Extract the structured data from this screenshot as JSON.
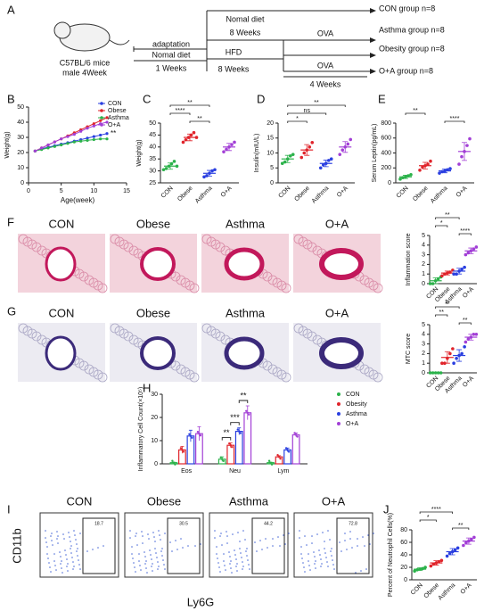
{
  "panel_a": {
    "panel": "A",
    "mouse": [
      "C57BL/6 mice",
      "male 4Week"
    ],
    "adaptation": "adaptation",
    "adaptation_diet": "Nomal diet",
    "adaptation_time": "1 Weeks",
    "normal_diet": "Nomal diet",
    "normal_time": "8 Weeks",
    "hfd": "HFD",
    "hfd_time": "8 Weeks",
    "ova_top": "OVA",
    "ova_bottom": "OVA",
    "ova_time": "4 Weeks",
    "groups": [
      "CON group n=8",
      "Asthma group n=8",
      "Obesity group n=8",
      "O+A group n=8"
    ]
  },
  "histology": [
    {
      "panel": "F",
      "labels": [
        "CON",
        "Obese",
        "Asthma",
        "O+A"
      ]
    },
    {
      "panel": "G",
      "labels": [
        "CON",
        "Obese",
        "Asthma",
        "O+A"
      ]
    }
  ],
  "flow": {
    "panel": "I",
    "labels": [
      "CON",
      "Obese",
      "Asthma",
      "O+A"
    ],
    "gates": [
      18.7,
      30.5,
      44.2,
      72.8
    ],
    "y_label": "CD11b",
    "x_label": "Ly6G"
  },
  "chart_data": [
    {
      "type": "line",
      "panel": "B",
      "x_label": "Age(week)",
      "y_label": "Weight(g)",
      "x": [
        1,
        2,
        3,
        4,
        5,
        6,
        7,
        8,
        9,
        10,
        11,
        12
      ],
      "series": [
        {
          "name": "CON",
          "color": "#2a3fe0",
          "values": [
            21,
            22.5,
            23.5,
            24.5,
            25.5,
            26.5,
            27.5,
            28.5,
            29.5,
            30.5,
            31.5,
            32.5
          ]
        },
        {
          "name": "Obese",
          "color": "#e0242b",
          "values": [
            21,
            23,
            25,
            27,
            29,
            31,
            33,
            35,
            37,
            39,
            41,
            43
          ]
        },
        {
          "name": "Asthma",
          "color": "#2bb24a",
          "values": [
            21,
            22,
            23,
            24,
            25,
            26,
            27,
            27.5,
            28,
            28.5,
            29,
            29
          ]
        },
        {
          "name": "O+A",
          "color": "#a23fd6",
          "values": [
            21,
            23,
            25,
            27,
            29,
            30.5,
            32,
            34,
            36,
            37.5,
            39,
            40
          ]
        }
      ],
      "xlim": [
        0,
        15
      ],
      "xticks": [
        0,
        5,
        10,
        15
      ],
      "ylim": [
        0,
        50
      ],
      "yticks": [
        0,
        10,
        20,
        30,
        40,
        50
      ],
      "annotation": "**"
    },
    {
      "type": "dot",
      "panel": "C",
      "y_label": "Weight(g)",
      "categories": [
        "CON",
        "Obese",
        "Asthma",
        "O+A"
      ],
      "colors": [
        "#2bb24a",
        "#e0242b",
        "#2a3fe0",
        "#a23fd6"
      ],
      "points": [
        [
          30.5,
          31,
          32,
          33,
          34,
          32
        ],
        [
          42,
          43,
          44,
          45,
          46,
          44
        ],
        [
          27.5,
          28,
          29,
          30,
          30.5
        ],
        [
          38,
          39,
          40,
          41,
          42
        ]
      ],
      "means": [
        32,
        44,
        29,
        40
      ],
      "sd": [
        1.3,
        1.4,
        1.2,
        1.5
      ],
      "ylim": [
        25,
        50
      ],
      "yticks": [
        25,
        30,
        35,
        40,
        45,
        50
      ],
      "brackets": [
        {
          "between": [
            "CON",
            "Asthma"
          ],
          "label": "**"
        },
        {
          "between": [
            "CON",
            "Obese"
          ],
          "label": "****"
        },
        {
          "between": [
            "Obese",
            "Asthma"
          ],
          "label": "**"
        }
      ]
    },
    {
      "type": "dot",
      "panel": "D",
      "y_label": "Insulin(mIU/L)",
      "categories": [
        "CON",
        "Obese",
        "Asthma",
        "O+A"
      ],
      "colors": [
        "#2bb24a",
        "#e0242b",
        "#2a3fe0",
        "#a23fd6"
      ],
      "points": [
        [
          6.5,
          7,
          8,
          9,
          9.5
        ],
        [
          8.5,
          10,
          11,
          12,
          13.5
        ],
        [
          5,
          6,
          6.5,
          7.5,
          8
        ],
        [
          9.5,
          11,
          12,
          13,
          14.5
        ]
      ],
      "means": [
        8,
        11,
        6.5,
        12
      ],
      "sd": [
        1.2,
        1.8,
        1.1,
        1.8
      ],
      "ylim": [
        0,
        20
      ],
      "yticks": [
        0,
        5,
        10,
        15,
        20
      ],
      "brackets": [
        {
          "between": [
            "CON",
            "O+A"
          ],
          "label": "**"
        },
        {
          "between": [
            "CON",
            "Asthma"
          ],
          "label": "ns"
        },
        {
          "between": [
            "CON",
            "Obese"
          ],
          "label": "*"
        }
      ]
    },
    {
      "type": "dot",
      "panel": "E",
      "y_label": "Serum Leptin(pg/mL)",
      "categories": [
        "CON",
        "Obese",
        "Asthma",
        "O+A"
      ],
      "colors": [
        "#2bb24a",
        "#e0242b",
        "#2a3fe0",
        "#a23fd6"
      ],
      "points": [
        [
          50,
          70,
          80,
          95,
          110
        ],
        [
          170,
          210,
          230,
          250,
          290
        ],
        [
          130,
          150,
          160,
          175,
          190
        ],
        [
          250,
          350,
          420,
          500,
          590
        ]
      ],
      "means": [
        80,
        230,
        160,
        420
      ],
      "sd": [
        22,
        45,
        25,
        120
      ],
      "ylim": [
        0,
        800
      ],
      "yticks": [
        0,
        200,
        400,
        600,
        800
      ],
      "brackets": [
        {
          "between": [
            "CON",
            "Obese"
          ],
          "label": "**"
        },
        {
          "between": [
            "Asthma",
            "O+A"
          ],
          "label": "****"
        }
      ]
    },
    {
      "type": "dot",
      "panel": "",
      "y_label": "Inflammation score",
      "categories": [
        "CON",
        "Obese",
        "Asthma",
        "O+A"
      ],
      "colors": [
        "#2bb24a",
        "#e0242b",
        "#2a3fe0",
        "#a23fd6"
      ],
      "points": [
        [
          0,
          0,
          0.3,
          0.5,
          0.7
        ],
        [
          0.8,
          1,
          1.1,
          1.2,
          1.4
        ],
        [
          1,
          1,
          1.3,
          1.5,
          1.7
        ],
        [
          3,
          3.2,
          3.4,
          3.6,
          3.8
        ]
      ],
      "means": [
        0.3,
        1.1,
        1.3,
        3.4
      ],
      "sd": [
        0.3,
        0.2,
        0.3,
        0.3
      ],
      "ylim": [
        0,
        5
      ],
      "yticks": [
        0,
        1,
        2,
        3,
        4,
        5
      ],
      "brackets": [
        {
          "between": [
            "CON",
            "Asthma"
          ],
          "label": "**"
        },
        {
          "between": [
            "CON",
            "Obese"
          ],
          "label": "*"
        },
        {
          "between": [
            "Asthma",
            "O+A"
          ],
          "label": "****"
        }
      ]
    },
    {
      "type": "dot",
      "panel": "",
      "y_label": "MTC score",
      "categories": [
        "CON",
        "Obese",
        "Asthma",
        "O+A"
      ],
      "colors": [
        "#2bb24a",
        "#e0242b",
        "#2a3fe0",
        "#a23fd6"
      ],
      "points": [
        [
          0,
          0,
          0,
          0,
          0
        ],
        [
          1,
          1,
          1.5,
          2,
          2.5
        ],
        [
          1,
          1.5,
          1.8,
          2,
          2.7
        ],
        [
          3.2,
          3.5,
          3.7,
          4,
          4
        ]
      ],
      "means": [
        0,
        1.6,
        1.8,
        3.7
      ],
      "sd": [
        0,
        0.6,
        0.6,
        0.3
      ],
      "ylim": [
        0,
        5
      ],
      "yticks": [
        0,
        1,
        2,
        3,
        4,
        5
      ],
      "brackets": [
        {
          "between": [
            "CON",
            "Asthma"
          ],
          "label": "**"
        },
        {
          "between": [
            "CON",
            "Obese"
          ],
          "label": "**"
        },
        {
          "between": [
            "Asthma",
            "O+A"
          ],
          "label": "**"
        }
      ]
    },
    {
      "type": "bar",
      "panel": "H",
      "y_label": "Inflammatory Cell Count(×10⁵)",
      "categories": [
        "Eos",
        "Neu",
        "Lym"
      ],
      "series": [
        {
          "name": "CON",
          "color": "#2bb24a",
          "values": [
            0.5,
            2,
            0.5
          ],
          "errors": [
            0.2,
            1,
            0.2
          ]
        },
        {
          "name": "Obesity",
          "color": "#e0242b",
          "values": [
            6,
            8,
            3
          ],
          "errors": [
            1.5,
            1,
            0.5
          ]
        },
        {
          "name": "Asthma",
          "color": "#2a3fe0",
          "values": [
            12,
            14,
            6
          ],
          "errors": [
            2.5,
            1.5,
            0.8
          ]
        },
        {
          "name": "O+A",
          "color": "#a23fd6",
          "values": [
            13,
            22,
            12.5
          ],
          "errors": [
            3,
            3,
            0.8
          ]
        }
      ],
      "ylim": [
        0,
        30
      ],
      "yticks": [
        0,
        10,
        20,
        30
      ],
      "brackets": [
        {
          "category": "Neu",
          "between": [
            "CON",
            "Obesity"
          ],
          "label": "**"
        },
        {
          "category": "Neu",
          "between": [
            "Obesity",
            "Asthma"
          ],
          "label": "***"
        },
        {
          "category": "Neu",
          "between": [
            "Asthma",
            "O+A"
          ],
          "label": "**"
        }
      ]
    },
    {
      "type": "dot",
      "panel": "J",
      "y_label": "Percent of Neutrophil Cells(%)",
      "categories": [
        "CON",
        "Obese",
        "Asthma",
        "O+A"
      ],
      "colors": [
        "#2bb24a",
        "#e0242b",
        "#2a3fe0",
        "#a23fd6"
      ],
      "points": [
        [
          14,
          16,
          17,
          18,
          20
        ],
        [
          22,
          25,
          27,
          29,
          31
        ],
        [
          38,
          42,
          45,
          48,
          51
        ],
        [
          55,
          59,
          62,
          65,
          68
        ]
      ],
      "means": [
        17,
        27,
        45,
        62
      ],
      "sd": [
        2,
        3.5,
        5,
        5
      ],
      "ylim": [
        0,
        80
      ],
      "yticks": [
        0,
        20,
        40,
        60,
        80
      ],
      "brackets": [
        {
          "between": [
            "CON",
            "Asthma"
          ],
          "label": "****"
        },
        {
          "between": [
            "CON",
            "Obese"
          ],
          "label": "*"
        },
        {
          "between": [
            "Asthma",
            "O+A"
          ],
          "label": "**"
        }
      ]
    }
  ]
}
